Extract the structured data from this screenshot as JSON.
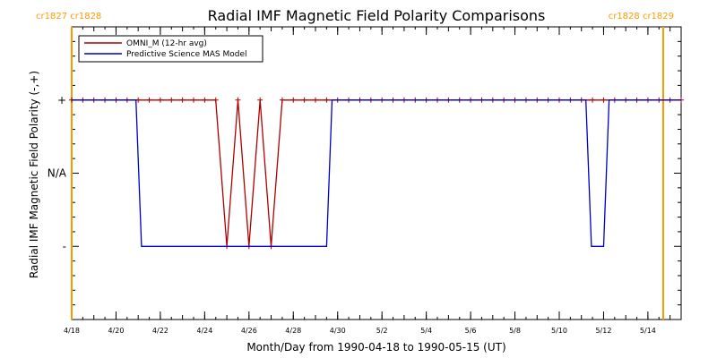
{
  "chart_data": {
    "type": "line",
    "title": "Radial IMF Magnetic Field Polarity Comparisons",
    "xlabel": "Month/Day from 1990-04-18 to 1990-05-15 (UT)",
    "ylabel": "Radial IMF Magnetic Field Polarity (-,+)",
    "x_unit": "day of 1990-04-18 to 1990-05-15",
    "xlim": [
      0,
      27.5
    ],
    "ylim": [
      -2,
      2
    ],
    "yticks": [
      {
        "value": 1,
        "label": "+"
      },
      {
        "value": 0,
        "label": "N/A"
      },
      {
        "value": -1,
        "label": "-"
      }
    ],
    "xticks": [
      {
        "value": 0,
        "label": "4/18"
      },
      {
        "value": 2,
        "label": "4/20"
      },
      {
        "value": 4,
        "label": "4/22"
      },
      {
        "value": 6,
        "label": "4/24"
      },
      {
        "value": 8,
        "label": "4/26"
      },
      {
        "value": 10,
        "label": "4/28"
      },
      {
        "value": 12,
        "label": "4/30"
      },
      {
        "value": 14,
        "label": "5/2"
      },
      {
        "value": 16,
        "label": "5/4"
      },
      {
        "value": 18,
        "label": "5/6"
      },
      {
        "value": 20,
        "label": "5/8"
      },
      {
        "value": 22,
        "label": "5/10"
      },
      {
        "value": 24,
        "label": "5/12"
      },
      {
        "value": 26,
        "label": "5/14"
      }
    ],
    "legend_position": "top-left",
    "carrington_markers": [
      {
        "x": 0,
        "label": "cr1827 cr1828",
        "color": "#ff9900"
      },
      {
        "x": 27.5,
        "label": "cr1828 cr1829",
        "color": "#ff9900"
      }
    ],
    "series": [
      {
        "name": "OMNI_M (12-hr avg)",
        "color": "#b00000",
        "marker": "plus",
        "x": [
          0,
          0.5,
          1,
          1.5,
          2,
          2.5,
          3,
          3.5,
          4,
          4.5,
          5,
          5.5,
          6,
          6.5,
          7,
          7.5,
          8,
          8.5,
          9,
          9.5,
          10,
          10.5,
          11,
          11.5,
          12,
          12.5,
          13,
          13.5,
          14,
          14.5,
          15,
          15.5,
          16,
          16.5,
          17,
          17.5,
          18,
          18.5,
          19,
          19.5,
          20,
          20.5,
          21,
          21.5,
          22,
          22.5,
          23,
          23.5,
          24,
          24.5,
          25,
          25.5,
          26,
          26.5,
          27,
          27.5
        ],
        "y": [
          1,
          1,
          1,
          1,
          1,
          1,
          1,
          1,
          1,
          1,
          1,
          1,
          1,
          1,
          -1,
          1,
          -1,
          1,
          -1,
          1,
          1,
          1,
          1,
          1,
          1,
          1,
          1,
          1,
          1,
          1,
          1,
          1,
          1,
          1,
          1,
          1,
          1,
          1,
          1,
          1,
          1,
          1,
          1,
          1,
          1,
          1,
          1,
          1,
          1,
          1,
          1,
          1,
          1,
          1,
          1,
          1
        ]
      },
      {
        "name": "Predictive Science MAS Model",
        "color": "#0000cc",
        "marker": "none",
        "x": [
          0,
          2.9,
          3.15,
          11.5,
          11.75,
          23.2,
          23.45,
          24.0,
          24.25,
          27.5
        ],
        "y": [
          1,
          1,
          -1,
          -1,
          1,
          1,
          -1,
          -1,
          1,
          1
        ]
      }
    ]
  }
}
